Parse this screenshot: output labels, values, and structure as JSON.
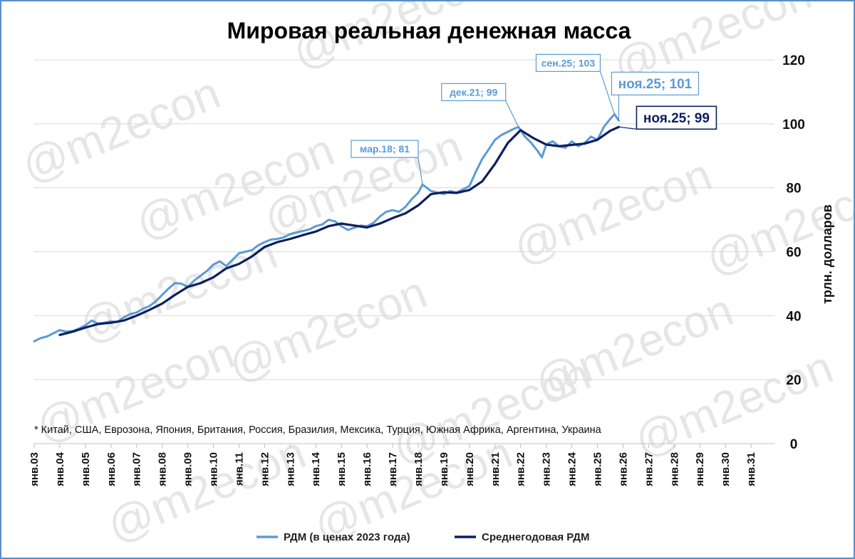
{
  "chart_data": {
    "type": "line",
    "title": "Мировая реальная денежная масса",
    "ylabel": "трлн. долларов",
    "ylim": [
      0,
      120
    ],
    "yticks": [
      0,
      20,
      40,
      60,
      80,
      100,
      120
    ],
    "xlim": [
      "2003-01",
      "2031-12"
    ],
    "x_tick_labels": [
      "янв.03",
      "янв.04",
      "янв.05",
      "янв.06",
      "янв.07",
      "янв.08",
      "янв.09",
      "янв.10",
      "янв.11",
      "янв.12",
      "янв.13",
      "янв.14",
      "янв.15",
      "янв.16",
      "янв.17",
      "янв.18",
      "янв.19",
      "янв.20",
      "янв.21",
      "янв.22",
      "янв.23",
      "янв.24",
      "янв.25",
      "янв.26",
      "янв.27",
      "янв.28",
      "янв.29",
      "янв.30",
      "янв.31"
    ],
    "grid": true,
    "legend_position": "bottom",
    "footnote": "* Китай, США, Еврозона, Япония, Британия, Россия, Бразилия, Мексика, Турция, Южная Африка, Аргентина, Украина",
    "watermark": "@m2econ",
    "series": [
      {
        "name": "РДМ (в ценах 2023 года)",
        "color": "#5b9bd5",
        "points": [
          [
            "2003-01",
            32.0
          ],
          [
            "2003-04",
            33.0
          ],
          [
            "2003-07",
            33.5
          ],
          [
            "2003-10",
            34.5
          ],
          [
            "2004-01",
            35.5
          ],
          [
            "2004-04",
            35.0
          ],
          [
            "2004-07",
            35.2
          ],
          [
            "2004-10",
            36.0
          ],
          [
            "2005-01",
            37.0
          ],
          [
            "2005-04",
            38.5
          ],
          [
            "2005-07",
            37.5
          ],
          [
            "2005-10",
            37.8
          ],
          [
            "2006-01",
            38.2
          ],
          [
            "2006-04",
            38.0
          ],
          [
            "2006-07",
            39.5
          ],
          [
            "2006-10",
            40.5
          ],
          [
            "2007-01",
            41.0
          ],
          [
            "2007-04",
            42.2
          ],
          [
            "2007-07",
            43.0
          ],
          [
            "2007-10",
            44.5
          ],
          [
            "2008-01",
            46.5
          ],
          [
            "2008-04",
            48.5
          ],
          [
            "2008-07",
            50.2
          ],
          [
            "2008-10",
            50.0
          ],
          [
            "2009-01",
            49.0
          ],
          [
            "2009-04",
            51.0
          ],
          [
            "2009-07",
            52.5
          ],
          [
            "2009-10",
            54.0
          ],
          [
            "2010-01",
            56.0
          ],
          [
            "2010-04",
            57.0
          ],
          [
            "2010-07",
            55.5
          ],
          [
            "2010-10",
            57.5
          ],
          [
            "2011-01",
            59.5
          ],
          [
            "2011-04",
            60.0
          ],
          [
            "2011-07",
            60.5
          ],
          [
            "2011-10",
            62.0
          ],
          [
            "2012-01",
            63.0
          ],
          [
            "2012-04",
            63.8
          ],
          [
            "2012-07",
            64.0
          ],
          [
            "2012-10",
            64.5
          ],
          [
            "2013-01",
            65.5
          ],
          [
            "2013-04",
            66.0
          ],
          [
            "2013-07",
            66.5
          ],
          [
            "2013-10",
            67.0
          ],
          [
            "2014-01",
            68.0
          ],
          [
            "2014-04",
            68.5
          ],
          [
            "2014-07",
            70.0
          ],
          [
            "2014-10",
            69.5
          ],
          [
            "2015-01",
            68.0
          ],
          [
            "2015-04",
            66.8
          ],
          [
            "2015-07",
            67.5
          ],
          [
            "2015-10",
            68.2
          ],
          [
            "2016-01",
            68.0
          ],
          [
            "2016-04",
            69.0
          ],
          [
            "2016-07",
            71.0
          ],
          [
            "2016-10",
            72.5
          ],
          [
            "2017-01",
            73.0
          ],
          [
            "2017-04",
            72.5
          ],
          [
            "2017-07",
            74.0
          ],
          [
            "2017-10",
            76.5
          ],
          [
            "2018-01",
            78.5
          ],
          [
            "2018-03",
            81.0
          ],
          [
            "2018-07",
            79.0
          ],
          [
            "2018-10",
            78.5
          ],
          [
            "2019-01",
            78.0
          ],
          [
            "2019-04",
            79.0
          ],
          [
            "2019-07",
            78.5
          ],
          [
            "2019-10",
            79.5
          ],
          [
            "2020-01",
            80.5
          ],
          [
            "2020-04",
            85.0
          ],
          [
            "2020-07",
            89.0
          ],
          [
            "2020-10",
            92.0
          ],
          [
            "2021-01",
            95.0
          ],
          [
            "2021-04",
            96.5
          ],
          [
            "2021-07",
            97.5
          ],
          [
            "2021-10",
            98.5
          ],
          [
            "2021-12",
            99.0
          ],
          [
            "2022-03",
            96.0
          ],
          [
            "2022-06",
            94.0
          ],
          [
            "2022-09",
            91.5
          ],
          [
            "2022-11",
            89.5
          ],
          [
            "2023-01",
            93.5
          ],
          [
            "2023-04",
            94.5
          ],
          [
            "2023-07",
            93.0
          ],
          [
            "2023-10",
            92.5
          ],
          [
            "2024-01",
            94.5
          ],
          [
            "2024-04",
            93.0
          ],
          [
            "2024-07",
            94.0
          ],
          [
            "2024-10",
            96.0
          ],
          [
            "2025-01",
            95.0
          ],
          [
            "2025-04",
            99.0
          ],
          [
            "2025-07",
            101.5
          ],
          [
            "2025-09",
            103.0
          ],
          [
            "2025-11",
            101.0
          ]
        ]
      },
      {
        "name": "Среднегодовая РДМ",
        "color": "#0c1f5e",
        "points": [
          [
            "2004-01",
            34.0
          ],
          [
            "2004-07",
            35.0
          ],
          [
            "2005-01",
            36.3
          ],
          [
            "2005-07",
            37.4
          ],
          [
            "2006-01",
            37.8
          ],
          [
            "2006-07",
            38.5
          ],
          [
            "2007-01",
            40.0
          ],
          [
            "2007-07",
            41.8
          ],
          [
            "2008-01",
            43.8
          ],
          [
            "2008-07",
            46.5
          ],
          [
            "2009-01",
            49.0
          ],
          [
            "2009-07",
            50.2
          ],
          [
            "2010-01",
            52.0
          ],
          [
            "2010-07",
            54.8
          ],
          [
            "2011-01",
            56.2
          ],
          [
            "2011-07",
            58.5
          ],
          [
            "2012-01",
            61.5
          ],
          [
            "2012-07",
            63.0
          ],
          [
            "2013-01",
            64.0
          ],
          [
            "2013-07",
            65.2
          ],
          [
            "2014-01",
            66.3
          ],
          [
            "2014-07",
            68.0
          ],
          [
            "2015-01",
            68.8
          ],
          [
            "2015-07",
            68.2
          ],
          [
            "2016-01",
            67.6
          ],
          [
            "2016-07",
            68.8
          ],
          [
            "2017-01",
            70.5
          ],
          [
            "2017-07",
            72.0
          ],
          [
            "2018-01",
            74.5
          ],
          [
            "2018-07",
            78.0
          ],
          [
            "2019-01",
            78.6
          ],
          [
            "2019-07",
            78.4
          ],
          [
            "2020-01",
            79.3
          ],
          [
            "2020-07",
            82.0
          ],
          [
            "2021-01",
            87.5
          ],
          [
            "2021-07",
            94.0
          ],
          [
            "2022-01",
            98.0
          ],
          [
            "2022-07",
            95.5
          ],
          [
            "2023-01",
            93.5
          ],
          [
            "2023-07",
            93.0
          ],
          [
            "2024-01",
            93.4
          ],
          [
            "2024-07",
            93.8
          ],
          [
            "2025-01",
            95.0
          ],
          [
            "2025-07",
            97.8
          ],
          [
            "2025-11",
            99.0
          ]
        ]
      }
    ],
    "annotations": [
      {
        "text": "мар.18; 81",
        "x": "2018-03",
        "y": 81,
        "series": 0,
        "style": "small"
      },
      {
        "text": "дек.21; 99",
        "x": "2021-12",
        "y": 99,
        "series": 0,
        "style": "small"
      },
      {
        "text": "сен.25; 103",
        "x": "2025-09",
        "y": 103,
        "series": 0,
        "style": "small"
      },
      {
        "text": "ноя.25; 101",
        "x": "2025-11",
        "y": 101,
        "series": 0,
        "style": "large-light"
      },
      {
        "text": "ноя.25; 99",
        "x": "2025-11",
        "y": 99,
        "series": 1,
        "style": "large-dark"
      }
    ]
  }
}
